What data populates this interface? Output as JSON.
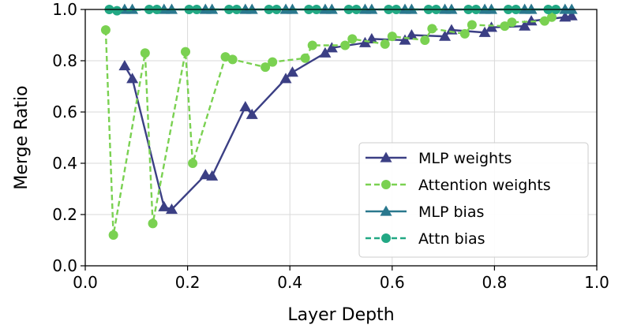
{
  "chart_data": {
    "type": "line",
    "title": "",
    "xlabel": "Layer Depth",
    "ylabel": "Merge Ratio",
    "xlim": [
      0.0,
      1.0
    ],
    "ylim": [
      0.0,
      1.0
    ],
    "xticks": [
      "0.0",
      "0.2",
      "0.4",
      "0.6",
      "0.8",
      "1.0"
    ],
    "yticks": [
      "0.0",
      "0.2",
      "0.4",
      "0.6",
      "0.8",
      "1.0"
    ],
    "grid": true,
    "legend_position": "lower-right",
    "series": [
      {
        "name": "MLP weights",
        "color": "#3b3f84",
        "line": "solid",
        "marker": "triangle",
        "x": [
          0.077,
          0.092,
          0.154,
          0.169,
          0.235,
          0.248,
          0.313,
          0.326,
          0.392,
          0.405,
          0.469,
          0.482,
          0.547,
          0.56,
          0.625,
          0.638,
          0.703,
          0.716,
          0.781,
          0.794,
          0.859,
          0.872,
          0.938,
          0.951
        ],
        "y": [
          0.78,
          0.73,
          0.23,
          0.22,
          0.355,
          0.35,
          0.62,
          0.59,
          0.73,
          0.755,
          0.83,
          0.85,
          0.87,
          0.885,
          0.88,
          0.9,
          0.895,
          0.92,
          0.91,
          0.93,
          0.935,
          0.955,
          0.97,
          0.975
        ]
      },
      {
        "name": "Attention weights",
        "color": "#7ad151",
        "line": "dashed",
        "marker": "circle",
        "x": [
          0.04,
          0.055,
          0.117,
          0.132,
          0.196,
          0.21,
          0.274,
          0.288,
          0.352,
          0.366,
          0.43,
          0.444,
          0.508,
          0.522,
          0.586,
          0.6,
          0.664,
          0.678,
          0.742,
          0.756,
          0.82,
          0.834,
          0.898,
          0.912
        ],
        "y": [
          0.92,
          0.12,
          0.83,
          0.165,
          0.835,
          0.4,
          0.815,
          0.805,
          0.775,
          0.795,
          0.81,
          0.86,
          0.86,
          0.885,
          0.865,
          0.895,
          0.88,
          0.925,
          0.905,
          0.94,
          0.935,
          0.95,
          0.955,
          0.97
        ]
      },
      {
        "name": "MLP bias",
        "color": "#2a788e",
        "line": "solid",
        "marker": "triangle",
        "x": [
          0.077,
          0.092,
          0.154,
          0.169,
          0.235,
          0.248,
          0.313,
          0.326,
          0.392,
          0.405,
          0.469,
          0.482,
          0.547,
          0.56,
          0.625,
          0.638,
          0.703,
          0.716,
          0.781,
          0.794,
          0.859,
          0.872,
          0.938,
          0.951
        ],
        "y": [
          1.0,
          1.0,
          1.0,
          1.0,
          1.0,
          1.0,
          1.0,
          1.0,
          1.0,
          1.0,
          1.0,
          1.0,
          1.0,
          1.0,
          1.0,
          1.0,
          1.0,
          1.0,
          1.0,
          1.0,
          1.0,
          1.0,
          1.0,
          1.0
        ]
      },
      {
        "name": "Attn bias",
        "color": "#22a884",
        "line": "dashed",
        "marker": "circle",
        "x": [
          0.047,
          0.062,
          0.125,
          0.14,
          0.203,
          0.218,
          0.281,
          0.296,
          0.359,
          0.374,
          0.437,
          0.452,
          0.515,
          0.53,
          0.593,
          0.608,
          0.671,
          0.686,
          0.749,
          0.764,
          0.827,
          0.842,
          0.905,
          0.92
        ],
        "y": [
          1.0,
          0.995,
          1.0,
          1.0,
          1.0,
          1.0,
          1.0,
          1.0,
          1.0,
          1.0,
          1.0,
          1.0,
          1.0,
          1.0,
          1.0,
          1.0,
          1.0,
          1.0,
          1.0,
          1.0,
          1.0,
          1.0,
          1.0,
          1.0
        ]
      }
    ]
  }
}
